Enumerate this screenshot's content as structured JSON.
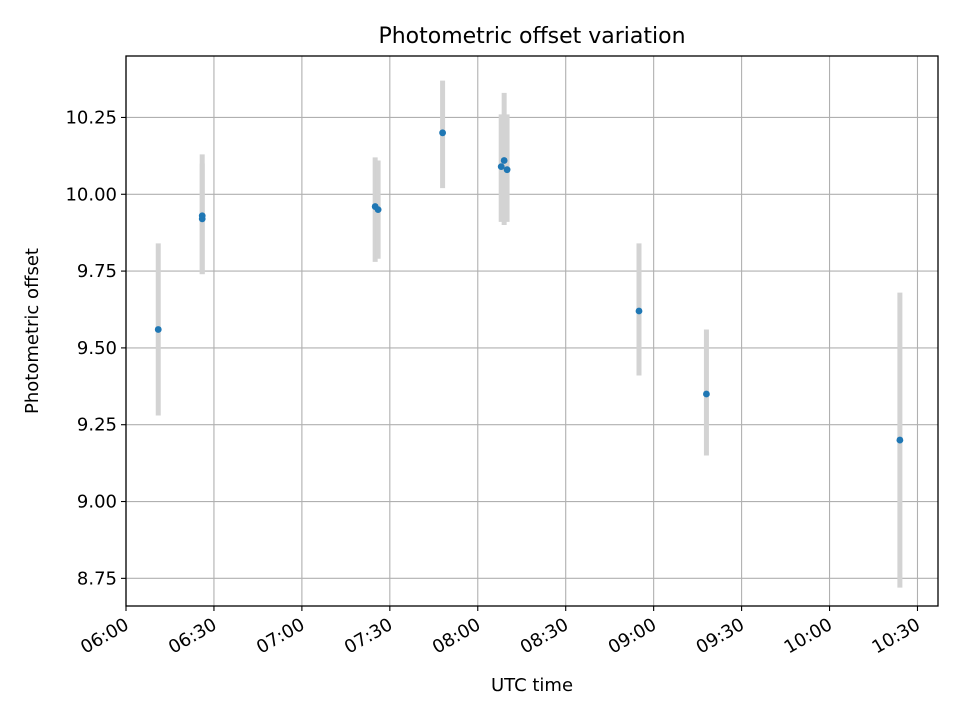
{
  "chart_data": {
    "type": "scatter",
    "title": "Photometric offset variation",
    "xlabel": "UTC time",
    "ylabel": "Photometric offset",
    "x_axis_type": "time",
    "xlim": [
      "06:00",
      "10:37"
    ],
    "ylim": [
      8.66,
      10.45
    ],
    "xticks": [
      "06:00",
      "06:30",
      "07:00",
      "07:30",
      "08:00",
      "08:30",
      "09:00",
      "09:30",
      "10:00",
      "10:30"
    ],
    "yticks": [
      8.75,
      9.0,
      9.25,
      9.5,
      9.75,
      10.0,
      10.25
    ],
    "ytick_labels": [
      "8.75",
      "9.00",
      "9.25",
      "9.50",
      "9.75",
      "10.00",
      "10.25"
    ],
    "grid": true,
    "point_color": "#1f77b4",
    "errorbar_color": "#d3d3d3",
    "points": [
      {
        "time": "06:11",
        "value": 9.56,
        "low": 9.28,
        "high": 9.84
      },
      {
        "time": "06:26",
        "value": 9.93,
        "low": 9.74,
        "high": 10.13
      },
      {
        "time": "06:26",
        "value": 9.92,
        "low": 9.74,
        "high": 10.1
      },
      {
        "time": "07:25",
        "value": 9.96,
        "low": 9.78,
        "high": 10.12
      },
      {
        "time": "07:26",
        "value": 9.95,
        "low": 9.79,
        "high": 10.11
      },
      {
        "time": "07:48",
        "value": 10.2,
        "low": 10.02,
        "high": 10.37
      },
      {
        "time": "08:08",
        "value": 10.09,
        "low": 9.91,
        "high": 10.26
      },
      {
        "time": "08:09",
        "value": 10.11,
        "low": 9.9,
        "high": 10.33
      },
      {
        "time": "08:10",
        "value": 10.08,
        "low": 9.91,
        "high": 10.26
      },
      {
        "time": "08:55",
        "value": 9.62,
        "low": 9.41,
        "high": 9.84
      },
      {
        "time": "09:18",
        "value": 9.35,
        "low": 9.15,
        "high": 9.56
      },
      {
        "time": "10:24",
        "value": 9.2,
        "low": 8.72,
        "high": 9.68
      }
    ]
  }
}
